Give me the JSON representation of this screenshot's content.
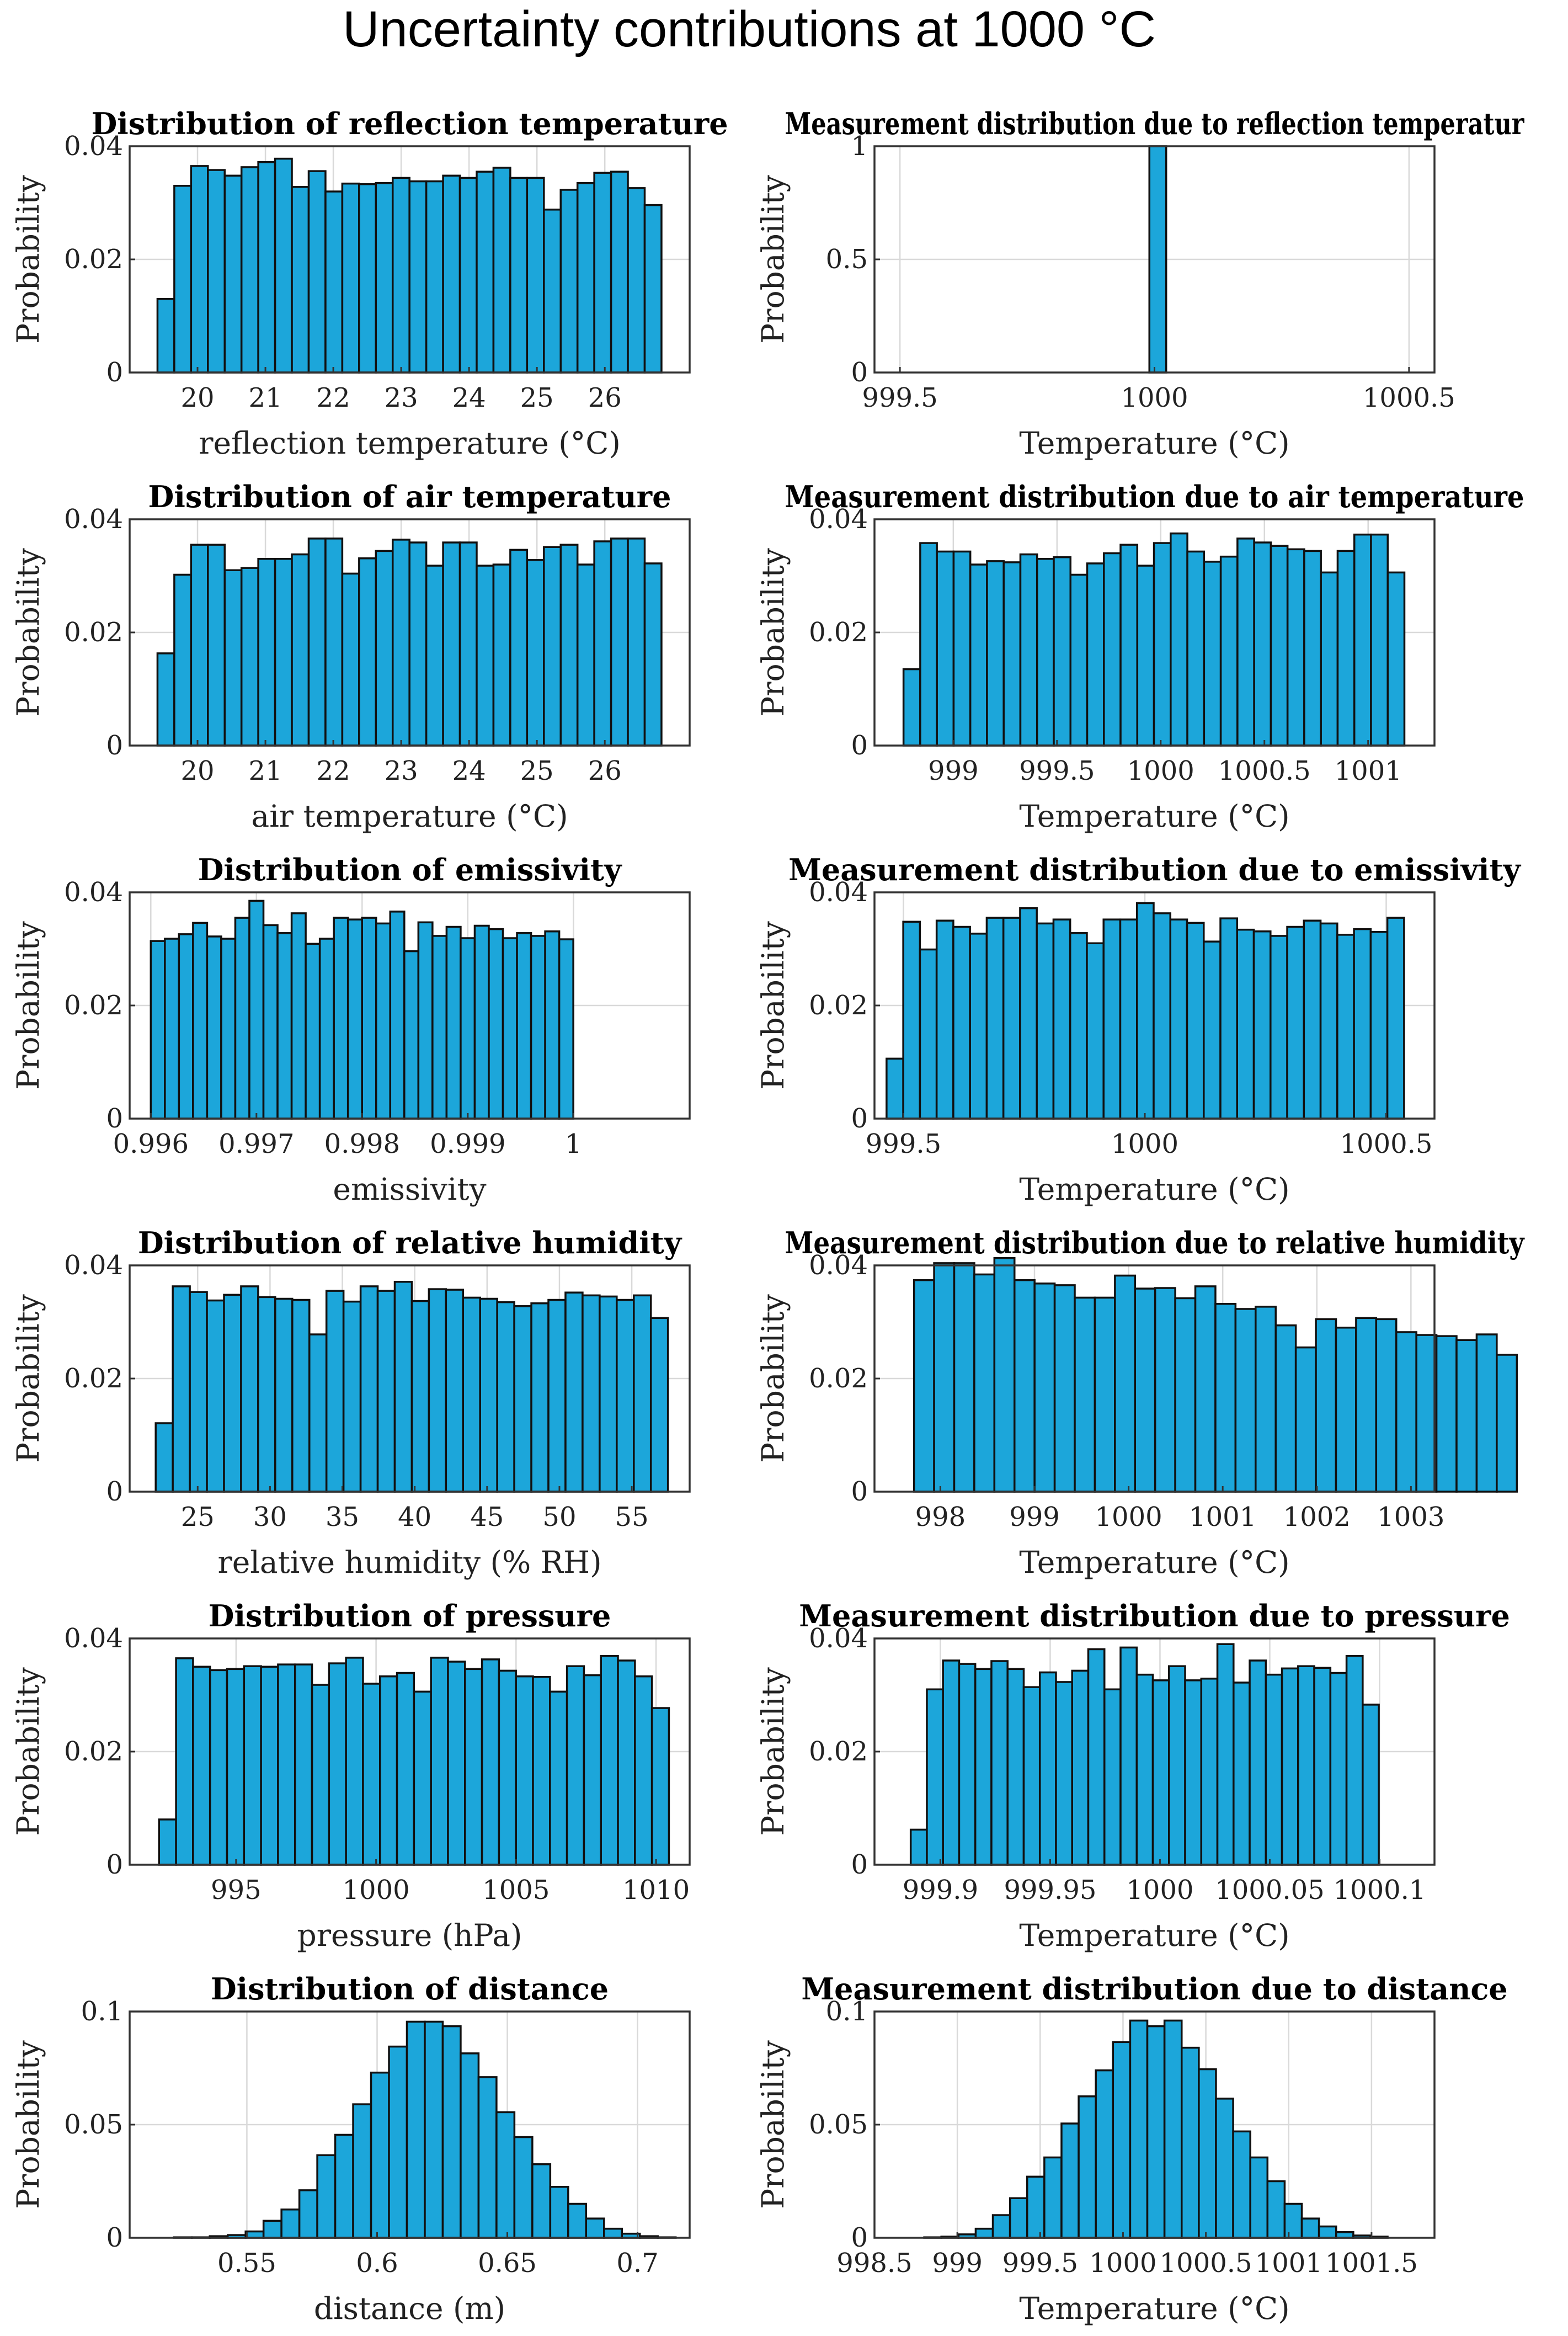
{
  "figure": {
    "title": "Uncertainty contributions at 1000 °C"
  },
  "colors": {
    "bar_fill": "#1ca6da",
    "bar_edge": "#111111",
    "grid": "#d9d9d9"
  },
  "chart_data": [
    {
      "type": "bar",
      "title": "Distribution of reflection temperature",
      "xlabel": "reflection temperature (°C)",
      "ylabel": "Probability",
      "xlim": [
        19,
        27.25
      ],
      "ylim": [
        0,
        0.04
      ],
      "xticks": [
        20,
        21,
        22,
        23,
        24,
        25,
        26
      ],
      "xtick_labels": [
        "20",
        "21",
        "22",
        "23",
        "24",
        "25",
        "26"
      ],
      "yticks": [
        0,
        0.02,
        0.04
      ],
      "ytick_labels": [
        "0",
        "0.02",
        "0.04"
      ],
      "bin_start": 19.41,
      "bin_width": 0.2475,
      "values": [
        0.013,
        0.033,
        0.0365,
        0.0358,
        0.0348,
        0.0363,
        0.0372,
        0.0378,
        0.0328,
        0.0356,
        0.032,
        0.0334,
        0.0333,
        0.0335,
        0.0344,
        0.0338,
        0.0338,
        0.0348,
        0.0344,
        0.0355,
        0.0362,
        0.0344,
        0.0344,
        0.0288,
        0.0323,
        0.0335,
        0.0353,
        0.0355,
        0.0326,
        0.0296
      ]
    },
    {
      "type": "bar",
      "title": "Measurement distribution due to reflection temperatur",
      "xlabel": "Temperature (°C)",
      "ylabel": "Probability",
      "xlim": [
        999.45,
        1000.55
      ],
      "ylim": [
        0,
        1
      ],
      "xticks": [
        999.5,
        1000,
        1000.5
      ],
      "xtick_labels": [
        "999.5",
        "1000",
        "1000.5"
      ],
      "yticks": [
        0,
        0.5,
        1
      ],
      "ytick_labels": [
        "0",
        "0.5",
        "1"
      ],
      "bin_start": 999.99,
      "bin_width": 0.033,
      "values": [
        1
      ]
    },
    {
      "type": "bar",
      "title": "Distribution of air temperature",
      "xlabel": "air temperature (°C)",
      "ylabel": "Probability",
      "xlim": [
        19,
        27.25
      ],
      "ylim": [
        0,
        0.04
      ],
      "xticks": [
        20,
        21,
        22,
        23,
        24,
        25,
        26
      ],
      "xtick_labels": [
        "20",
        "21",
        "22",
        "23",
        "24",
        "25",
        "26"
      ],
      "yticks": [
        0,
        0.02,
        0.04
      ],
      "ytick_labels": [
        "0",
        "0.02",
        "0.04"
      ],
      "bin_start": 19.41,
      "bin_width": 0.2475,
      "values": [
        0.0163,
        0.0302,
        0.0355,
        0.0355,
        0.031,
        0.0314,
        0.033,
        0.033,
        0.0338,
        0.0366,
        0.0366,
        0.0304,
        0.0331,
        0.0344,
        0.0364,
        0.0359,
        0.0318,
        0.0359,
        0.0359,
        0.0318,
        0.032,
        0.0346,
        0.0328,
        0.0351,
        0.0355,
        0.032,
        0.0361,
        0.0366,
        0.0366,
        0.0322
      ]
    },
    {
      "type": "bar",
      "title": "Measurement distribution due to air temperature",
      "xlabel": "Temperature (°C)",
      "ylabel": "Probability",
      "xlim": [
        998.62,
        1001.32
      ],
      "ylim": [
        0,
        0.04
      ],
      "xticks": [
        999,
        999.5,
        1000,
        1000.5,
        1001
      ],
      "xtick_labels": [
        "999",
        "999.5",
        "1000",
        "1000.5",
        "1001"
      ],
      "yticks": [
        0,
        0.02,
        0.04
      ],
      "ytick_labels": [
        "0",
        "0.02",
        "0.04"
      ],
      "bin_start": 998.76,
      "bin_width": 0.0805,
      "values": [
        0.0135,
        0.0358,
        0.0343,
        0.0343,
        0.032,
        0.0326,
        0.0324,
        0.0338,
        0.033,
        0.0333,
        0.0302,
        0.0322,
        0.034,
        0.0355,
        0.0318,
        0.0358,
        0.0375,
        0.0343,
        0.0325,
        0.0334,
        0.0366,
        0.0359,
        0.0353,
        0.0347,
        0.0344,
        0.0306,
        0.0344,
        0.0373,
        0.0373,
        0.0306
      ]
    },
    {
      "type": "bar",
      "title": "Distribution of emissivity",
      "xlabel": "emissivity",
      "ylabel": "Probability",
      "xlim": [
        0.9958,
        1.0011
      ],
      "ylim": [
        0,
        0.04
      ],
      "xticks": [
        0.996,
        0.997,
        0.998,
        0.999,
        1
      ],
      "xtick_labels": [
        "0.996",
        "0.997",
        "0.998",
        "0.999",
        "1"
      ],
      "yticks": [
        0,
        0.02,
        0.04
      ],
      "ytick_labels": [
        "0",
        "0.02",
        "0.04"
      ],
      "bin_start": 0.996,
      "bin_width": 0.0001333,
      "values": [
        0.0314,
        0.0318,
        0.0326,
        0.0346,
        0.0322,
        0.0318,
        0.0355,
        0.0385,
        0.0342,
        0.0328,
        0.0363,
        0.0309,
        0.0318,
        0.0355,
        0.0352,
        0.0355,
        0.0345,
        0.0366,
        0.0296,
        0.0347,
        0.0323,
        0.0339,
        0.0319,
        0.0341,
        0.0335,
        0.0319,
        0.0328,
        0.0323,
        0.0331,
        0.0317
      ]
    },
    {
      "type": "bar",
      "title": "Measurement distribution due to emissivity",
      "xlabel": "Temperature (°C)",
      "ylabel": "Probability",
      "xlim": [
        999.44,
        1000.6
      ],
      "ylim": [
        0,
        0.04
      ],
      "xticks": [
        999.5,
        1000,
        1000.5
      ],
      "xtick_labels": [
        "999.5",
        "1000",
        "1000.5"
      ],
      "yticks": [
        0,
        0.02,
        0.04
      ],
      "ytick_labels": [
        "0",
        "0.02",
        "0.04"
      ],
      "bin_start": 999.465,
      "bin_width": 0.03458,
      "values": [
        0.0106,
        0.0348,
        0.0299,
        0.035,
        0.0339,
        0.0327,
        0.0355,
        0.0355,
        0.0372,
        0.0345,
        0.0352,
        0.0328,
        0.031,
        0.0352,
        0.0352,
        0.0381,
        0.0363,
        0.0352,
        0.0346,
        0.0313,
        0.0354,
        0.0334,
        0.0331,
        0.0323,
        0.0339,
        0.035,
        0.0345,
        0.0325,
        0.0335,
        0.033,
        0.0355
      ]
    },
    {
      "type": "bar",
      "title": "Distribution of relative humidity",
      "xlabel": "relative humidity (% RH)",
      "ylabel": "Probability",
      "xlim": [
        20.3,
        59
      ],
      "ylim": [
        0,
        0.04
      ],
      "xticks": [
        25,
        30,
        35,
        40,
        45,
        50,
        55
      ],
      "xtick_labels": [
        "25",
        "30",
        "35",
        "40",
        "45",
        "50",
        "55"
      ],
      "yticks": [
        0,
        0.02,
        0.04
      ],
      "ytick_labels": [
        "0",
        "0.02",
        "0.04"
      ],
      "bin_start": 22.1,
      "bin_width": 1.18,
      "values": [
        0.0121,
        0.0363,
        0.0353,
        0.0338,
        0.0348,
        0.0363,
        0.0344,
        0.0341,
        0.0339,
        0.0278,
        0.0355,
        0.0336,
        0.0363,
        0.0355,
        0.0371,
        0.0337,
        0.0358,
        0.0357,
        0.0343,
        0.0341,
        0.0335,
        0.0328,
        0.0333,
        0.0339,
        0.0352,
        0.0347,
        0.0345,
        0.0339,
        0.0347,
        0.0307
      ]
    },
    {
      "type": "bar",
      "title": "Measurement distribution due to relative humidity",
      "xlabel": "Temperature (°C)",
      "ylabel": "Probability",
      "xlim": [
        997.3,
        1003.25
      ],
      "ylim": [
        0,
        0.04
      ],
      "xticks": [
        998,
        999,
        1000,
        1001,
        1002,
        1003
      ],
      "xtick_labels": [
        "998",
        "999",
        "1000",
        "1001",
        "1002",
        "1003"
      ],
      "yticks": [
        0,
        0.02,
        0.04
      ],
      "ytick_labels": [
        "0",
        "0.02",
        "0.04"
      ],
      "bin_start": 997.72,
      "bin_width": 0.2135,
      "values": [
        0.0374,
        0.0404,
        0.0404,
        0.0384,
        0.0413,
        0.0374,
        0.0368,
        0.0365,
        0.0343,
        0.0343,
        0.0382,
        0.0359,
        0.036,
        0.0342,
        0.0363,
        0.0332,
        0.0323,
        0.0327,
        0.0294,
        0.0255,
        0.0305,
        0.029,
        0.0307,
        0.0305,
        0.0282,
        0.0277,
        0.0275,
        0.0268,
        0.0278,
        0.0242
      ]
    },
    {
      "type": "bar",
      "title": "Distribution of pressure",
      "xlabel": "pressure (hPa)",
      "ylabel": "Probability",
      "xlim": [
        991.2,
        1011.2
      ],
      "ylim": [
        0,
        0.04
      ],
      "xticks": [
        995,
        1000,
        1005,
        1010
      ],
      "xtick_labels": [
        "995",
        "1000",
        "1005",
        "1010"
      ],
      "yticks": [
        0,
        0.02,
        0.04
      ],
      "ytick_labels": [
        "0",
        "0.02",
        "0.04"
      ],
      "bin_start": 992.25,
      "bin_width": 0.607,
      "values": [
        0.008,
        0.0365,
        0.035,
        0.0344,
        0.0346,
        0.0351,
        0.035,
        0.0354,
        0.0354,
        0.0318,
        0.0356,
        0.0366,
        0.032,
        0.0333,
        0.0339,
        0.0306,
        0.0366,
        0.0359,
        0.0346,
        0.0363,
        0.0343,
        0.0333,
        0.0332,
        0.0306,
        0.0351,
        0.0335,
        0.0369,
        0.0361,
        0.0333,
        0.0277
      ]
    },
    {
      "type": "bar",
      "title": "Measurement distribution due to pressure",
      "xlabel": "Temperature (°C)",
      "ylabel": "Probability",
      "xlim": [
        999.87,
        1000.125
      ],
      "ylim": [
        0,
        0.04
      ],
      "xticks": [
        999.9,
        999.95,
        1000,
        1000.05,
        1000.1
      ],
      "xtick_labels": [
        "999.9",
        "999.95",
        "1000",
        "1000.05",
        "1000.1"
      ],
      "yticks": [
        0,
        0.02,
        0.04
      ],
      "ytick_labels": [
        "0",
        "0.02",
        "0.04"
      ],
      "bin_start": 999.8865,
      "bin_width": 0.00735,
      "values": [
        0.0062,
        0.031,
        0.0361,
        0.0355,
        0.0346,
        0.036,
        0.0346,
        0.0314,
        0.034,
        0.0323,
        0.0343,
        0.0381,
        0.031,
        0.0384,
        0.0336,
        0.0326,
        0.0351,
        0.0326,
        0.0329,
        0.039,
        0.0322,
        0.0361,
        0.0336,
        0.0347,
        0.0351,
        0.0348,
        0.0339,
        0.0369,
        0.0283
      ]
    },
    {
      "type": "bar",
      "title": "Distribution of distance",
      "xlabel": "distance (m)",
      "ylabel": "Probability",
      "xlim": [
        0.505,
        0.72
      ],
      "ylim": [
        0,
        0.1
      ],
      "xticks": [
        0.55,
        0.6,
        0.65,
        0.7
      ],
      "xtick_labels": [
        "0.55",
        "0.6",
        "0.65",
        "0.7"
      ],
      "yticks": [
        0,
        0.05,
        0.1
      ],
      "ytick_labels": [
        "0",
        "0.05",
        "0.1"
      ],
      "bin_start": 0.522,
      "bin_width": 0.00688,
      "values": [
        0.0002,
        0.0002,
        0.0007,
        0.0012,
        0.0028,
        0.0075,
        0.0125,
        0.021,
        0.0365,
        0.0455,
        0.059,
        0.073,
        0.0845,
        0.0955,
        0.0955,
        0.0935,
        0.0815,
        0.071,
        0.0555,
        0.0445,
        0.0325,
        0.0225,
        0.015,
        0.0085,
        0.004,
        0.0018,
        0.0007,
        0.0002
      ]
    },
    {
      "type": "bar",
      "title": "Measurement distribution due to distance",
      "xlabel": "Temperature (°C)",
      "ylabel": "Probability",
      "xlim": [
        998.5,
        1001.88
      ],
      "ylim": [
        0,
        0.1
      ],
      "xticks": [
        998.5,
        999,
        999.5,
        1000,
        1000.5,
        1001,
        1001.5
      ],
      "xtick_labels": [
        "998.5",
        "999",
        "999.5",
        "1000",
        "1000.5",
        "1001",
        "1001.5"
      ],
      "yticks": [
        0,
        0.05,
        0.1
      ],
      "ytick_labels": [
        "0",
        "0.05",
        "0.1"
      ],
      "bin_start": 998.8,
      "bin_width": 0.1036,
      "values": [
        0.0002,
        0.0005,
        0.0015,
        0.004,
        0.01,
        0.0175,
        0.027,
        0.0355,
        0.0505,
        0.0625,
        0.074,
        0.0865,
        0.096,
        0.0935,
        0.096,
        0.084,
        0.0745,
        0.0615,
        0.047,
        0.0355,
        0.025,
        0.015,
        0.0085,
        0.005,
        0.0025,
        0.001,
        0.0005
      ]
    }
  ]
}
